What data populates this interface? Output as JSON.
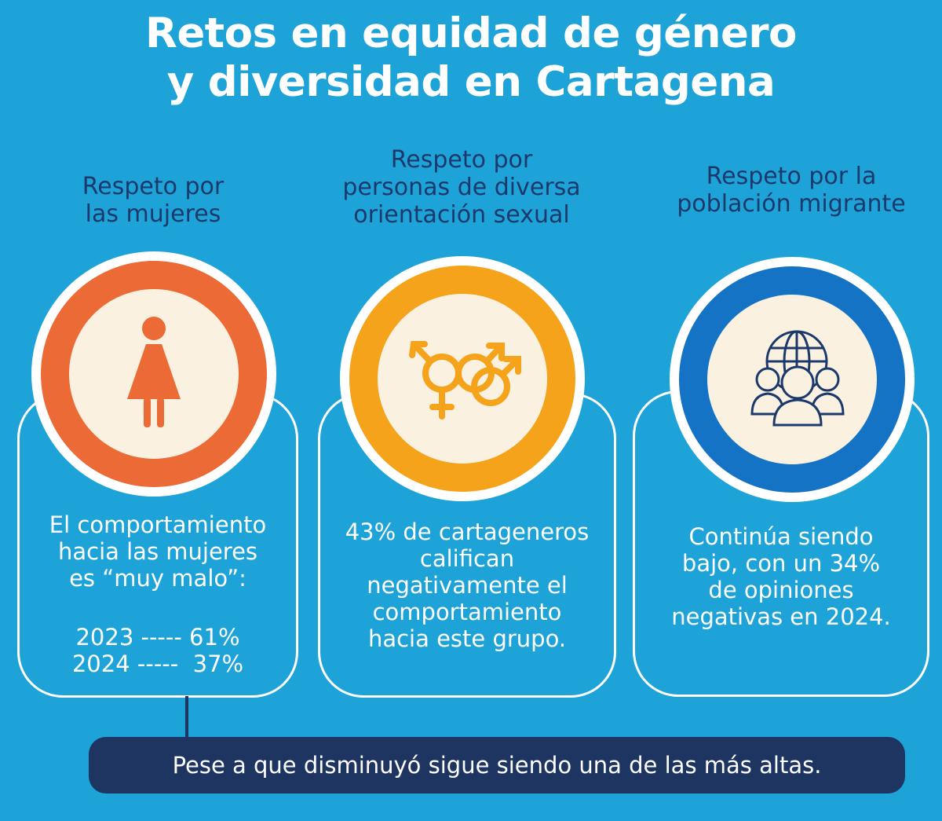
{
  "title": {
    "line1": "Retos en equidad de género",
    "line2": "y diversidad en Cartagena"
  },
  "columns": [
    {
      "heading": [
        "Respeto por",
        "las mujeres"
      ],
      "icon": "woman-icon",
      "ring_color": "#ec6a36",
      "body": [
        "El comportamiento",
        "hacia las mujeres",
        "es “muy malo”:"
      ],
      "stats": [
        {
          "year": "2023",
          "sep": "-----",
          "value": "61%"
        },
        {
          "year": "2024",
          "sep": "-----",
          "value": " 37%"
        }
      ]
    },
    {
      "heading": [
        "Respeto por",
        "personas de diversa",
        "orientación sexual"
      ],
      "icon": "gender-symbols-icon",
      "ring_color": "#f5a31a",
      "body": [
        "43% de cartageneros",
        "califican",
        "negativamente el",
        "comportamiento",
        "hacia este grupo."
      ]
    },
    {
      "heading": [
        "Respeto por la",
        "población migrante"
      ],
      "icon": "migrant-people-globe-icon",
      "ring_color": "#1473c4",
      "body": [
        "Continúa siendo",
        "bajo, con un 34%",
        "de opiniones",
        "negativas en 2024."
      ]
    }
  ],
  "note": "Pese a que disminuyó sigue siendo una de las más altas."
}
